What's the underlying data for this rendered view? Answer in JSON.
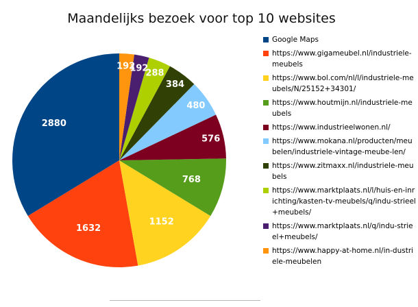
{
  "chart_data": {
    "type": "pie",
    "title": "Maandelijks bezoek voor top 10 websites",
    "legend_position": "right",
    "slices": [
      {
        "name": "Google Maps",
        "value": 2880,
        "color": "#004586"
      },
      {
        "name": "https://www.gigameubel.nl/industriele-meubels",
        "value": 1632,
        "color": "#ff420e"
      },
      {
        "name": "https://www.bol.com/nl/l/industriele-meubels/N/25152+34301/",
        "value": 1152,
        "color": "#ffd320"
      },
      {
        "name": "https://www.houtmijn.nl/industriele-meubels",
        "value": 768,
        "color": "#579d1c"
      },
      {
        "name": "https://www.industrieelwonen.nl/",
        "value": 576,
        "color": "#7e0021"
      },
      {
        "name": "https://www.mokana.nl/producten/meubelen/industriele-vintage-meube-len/",
        "value": 480,
        "color": "#83caff"
      },
      {
        "name": "https://www.zitmaxx.nl/industriele-meubels",
        "value": 384,
        "color": "#314004"
      },
      {
        "name": "https://www.marktplaats.nl/l/huis-en-inrichting/kasten-tv-meubels/q/indu-strieel+meubels/",
        "value": 288,
        "color": "#aecf00"
      },
      {
        "name": "https://www.marktplaats.nl/q/indu-strieel+meubels/",
        "value": 192,
        "color": "#4b1f6f"
      },
      {
        "name": "https://www.happy-at-home.nl/in-dustriele-meubelen",
        "value": 192,
        "color": "#ff950e"
      }
    ]
  }
}
